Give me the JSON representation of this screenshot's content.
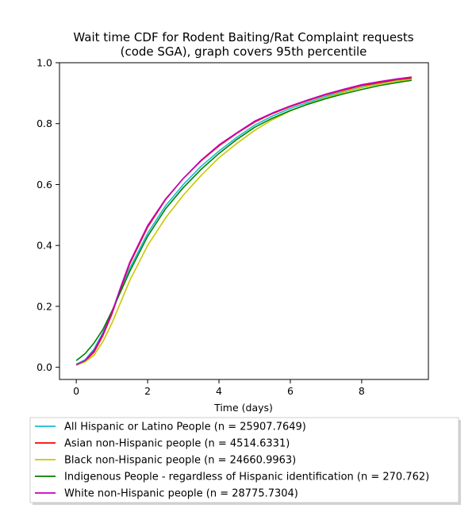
{
  "chart_data": {
    "type": "line",
    "title_lines": [
      "Wait time CDF for Rodent Baiting/Rat Complaint  requests",
      "(code SGA), graph covers 95th percentile"
    ],
    "xlabel": "Time (days)",
    "ylabel": "",
    "xlim": [
      -0.47,
      9.87
    ],
    "ylim": [
      -0.04,
      1.0
    ],
    "xticks": [
      0,
      2,
      4,
      6,
      8
    ],
    "xtick_labels": [
      "0",
      "2",
      "4",
      "6",
      "8"
    ],
    "yticks": [
      0.0,
      0.2,
      0.4,
      0.6,
      0.8,
      1.0
    ],
    "ytick_labels": [
      "0.0",
      "0.2",
      "0.4",
      "0.6",
      "0.8",
      "1.0"
    ],
    "grid": false,
    "legend_position": "below-plot",
    "series": [
      {
        "name": "All Hispanic or Latino People (n = 25907.7649)",
        "color": "#17becf",
        "x": [
          0,
          0.25,
          0.5,
          0.75,
          1.0,
          1.25,
          1.5,
          2.0,
          2.5,
          3.0,
          3.5,
          4.0,
          4.5,
          5.0,
          5.5,
          6.0,
          6.5,
          7.0,
          7.5,
          8.0,
          8.5,
          9.0,
          9.4
        ],
        "y": [
          0.01,
          0.025,
          0.06,
          0.115,
          0.18,
          0.255,
          0.325,
          0.44,
          0.53,
          0.6,
          0.66,
          0.71,
          0.755,
          0.795,
          0.825,
          0.85,
          0.87,
          0.89,
          0.905,
          0.92,
          0.932,
          0.942,
          0.948
        ]
      },
      {
        "name": "Asian non-Hispanic people (n = 4514.6331)",
        "color": "#ff0000",
        "x": [
          0,
          0.25,
          0.5,
          0.75,
          1.0,
          1.25,
          1.5,
          2.0,
          2.5,
          3.0,
          3.5,
          4.0,
          4.5,
          5.0,
          5.5,
          6.0,
          6.5,
          7.0,
          7.5,
          8.0,
          8.5,
          9.0,
          9.4
        ],
        "y": [
          0.008,
          0.02,
          0.05,
          0.105,
          0.175,
          0.26,
          0.34,
          0.46,
          0.55,
          0.62,
          0.678,
          0.727,
          0.768,
          0.805,
          0.833,
          0.856,
          0.876,
          0.895,
          0.91,
          0.925,
          0.935,
          0.945,
          0.95
        ]
      },
      {
        "name": "Black non-Hispanic people (n = 24660.9963)",
        "color": "#c8c800",
        "x": [
          0,
          0.25,
          0.5,
          0.75,
          1.0,
          1.25,
          1.5,
          2.0,
          2.5,
          3.0,
          3.5,
          4.0,
          4.5,
          5.0,
          5.5,
          6.0,
          6.5,
          7.0,
          7.5,
          8.0,
          8.5,
          9.0,
          9.4
        ],
        "y": [
          0.007,
          0.018,
          0.04,
          0.085,
          0.145,
          0.215,
          0.285,
          0.4,
          0.49,
          0.565,
          0.63,
          0.688,
          0.735,
          0.778,
          0.813,
          0.842,
          0.865,
          0.885,
          0.903,
          0.918,
          0.93,
          0.94,
          0.945
        ]
      },
      {
        "name": "Indigenous People - regardless of Hispanic identification (n = 270.762)",
        "color": "#008000",
        "x": [
          0,
          0.25,
          0.5,
          0.75,
          1.0,
          1.25,
          1.5,
          2.0,
          2.5,
          3.0,
          3.5,
          4.0,
          4.5,
          5.0,
          5.5,
          6.0,
          6.5,
          7.0,
          7.5,
          8.0,
          8.5,
          9.0,
          9.4
        ],
        "y": [
          0.022,
          0.045,
          0.08,
          0.125,
          0.185,
          0.25,
          0.315,
          0.43,
          0.52,
          0.59,
          0.65,
          0.702,
          0.748,
          0.788,
          0.818,
          0.843,
          0.864,
          0.882,
          0.898,
          0.912,
          0.925,
          0.935,
          0.942
        ]
      },
      {
        "name": "White non-Hispanic people (n = 28775.7304)",
        "color": "#c000c0",
        "x": [
          0,
          0.25,
          0.5,
          0.75,
          1.0,
          1.25,
          1.5,
          2.0,
          2.5,
          3.0,
          3.5,
          4.0,
          4.5,
          5.0,
          5.5,
          6.0,
          6.5,
          7.0,
          7.5,
          8.0,
          8.5,
          9.0,
          9.4
        ],
        "y": [
          0.008,
          0.022,
          0.055,
          0.11,
          0.18,
          0.265,
          0.345,
          0.465,
          0.552,
          0.62,
          0.68,
          0.73,
          0.77,
          0.808,
          0.835,
          0.858,
          0.878,
          0.897,
          0.913,
          0.928,
          0.938,
          0.947,
          0.953
        ]
      }
    ]
  }
}
